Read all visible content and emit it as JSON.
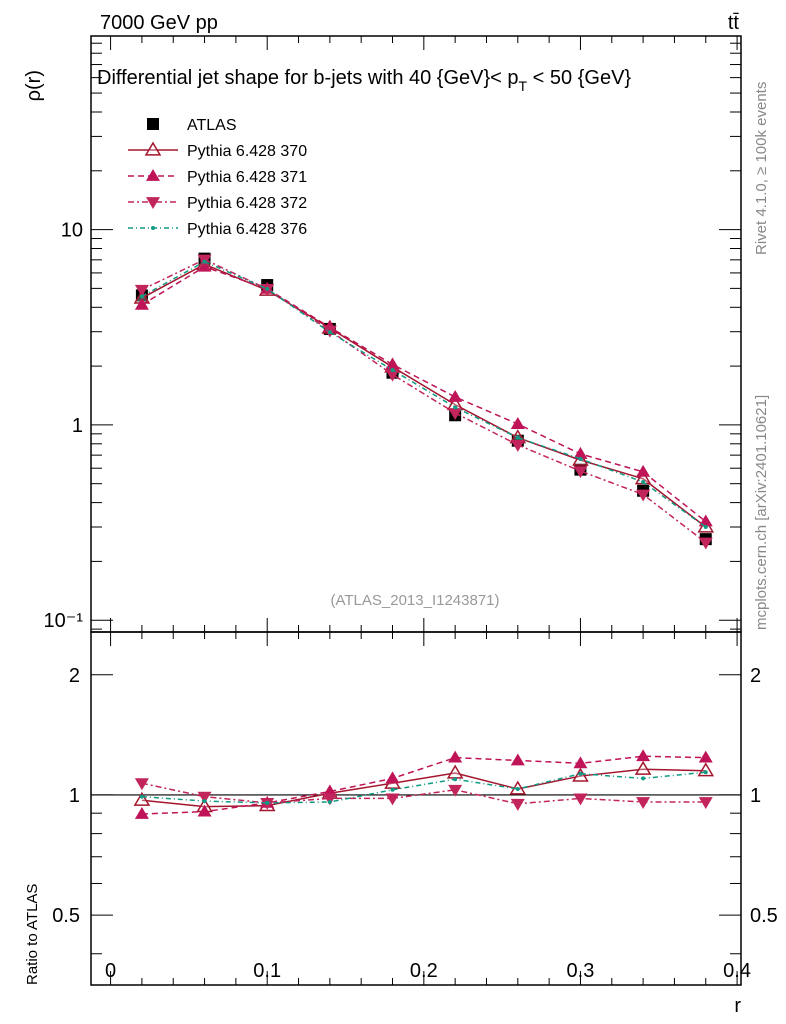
{
  "header": {
    "energy_label": "7000 GeV pp",
    "process_label": "tt̄"
  },
  "side": {
    "rivet_label": "Rivet 4.1.0, ≥ 100k events",
    "mcplots_label": "mcplots.cern.ch [arXiv:2401.10621]"
  },
  "chart_data": {
    "type": "line",
    "title": "Differential jet shape for b-jets with 40 {GeV}< p_T < 50 {GeV}",
    "title_parts": {
      "main": "Differential jet shape for b-jets with 40 {GeV}< p",
      "sub": "T",
      "tail": " < 50 {GeV}"
    },
    "analysis_label": "(ATLAS_2013_I1243871)",
    "xlabel": "r",
    "ylabel": "ρ(r)",
    "ratio_ylabel": "Ratio to ATLAS",
    "xlim": [
      -0.0125,
      0.4025
    ],
    "ylim": [
      0.087,
      98
    ],
    "yscale": "log",
    "ratio_ylim": [
      0.334,
      2.56
    ],
    "x_ticks": [
      "0",
      "0.1",
      "0.2",
      "0.3",
      "0.4"
    ],
    "y_ticks": [
      "10⁻¹",
      "1",
      "10"
    ],
    "ratio_ticks": [
      "0.5",
      "1",
      "2"
    ],
    "x": [
      0.02,
      0.06,
      0.1,
      0.14,
      0.18,
      0.22,
      0.26,
      0.3,
      0.34,
      0.38
    ],
    "data": {
      "name": "ATLAS",
      "values": [
        4.6,
        7.1,
        5.2,
        3.1,
        1.85,
        1.12,
        0.83,
        0.59,
        0.46,
        0.26
      ]
    },
    "series": [
      {
        "name": "Pythia 6.428 370",
        "color": "#a3162e",
        "marker": "open-triangle-up",
        "dash": "",
        "values": [
          4.46,
          6.64,
          4.89,
          3.13,
          1.98,
          1.27,
          0.86,
          0.66,
          0.53,
          0.3
        ],
        "ratio": [
          0.97,
          0.935,
          0.94,
          1.01,
          1.07,
          1.135,
          1.035,
          1.115,
          1.16,
          1.15
        ]
      },
      {
        "name": "Pythia 6.428 371",
        "color": "#bf1457",
        "marker": "triangle-up",
        "dash": "6,4",
        "values": [
          4.12,
          6.45,
          4.97,
          3.16,
          2.04,
          1.39,
          1.01,
          0.71,
          0.575,
          0.32
        ],
        "ratio": [
          0.896,
          0.908,
          0.955,
          1.02,
          1.1,
          1.24,
          1.22,
          1.2,
          1.25,
          1.24
        ]
      },
      {
        "name": "Pythia 6.428 372",
        "color": "#c2255c",
        "marker": "triangle-down",
        "dash": "6,3,2,3",
        "values": [
          4.92,
          7.03,
          4.97,
          3.04,
          1.81,
          1.15,
          0.79,
          0.58,
          0.44,
          0.25
        ],
        "ratio": [
          1.07,
          0.99,
          0.955,
          0.98,
          0.98,
          1.03,
          0.95,
          0.98,
          0.96,
          0.96
        ]
      },
      {
        "name": "Pythia 6.428 376",
        "color": "#0f9a84",
        "marker": "dot",
        "dash": "5,3,1,3",
        "values": [
          4.55,
          6.85,
          4.97,
          2.98,
          1.91,
          1.23,
          0.86,
          0.67,
          0.51,
          0.3
        ],
        "ratio": [
          0.99,
          0.965,
          0.955,
          0.96,
          1.03,
          1.095,
          1.035,
          1.13,
          1.1,
          1.14
        ]
      }
    ]
  }
}
